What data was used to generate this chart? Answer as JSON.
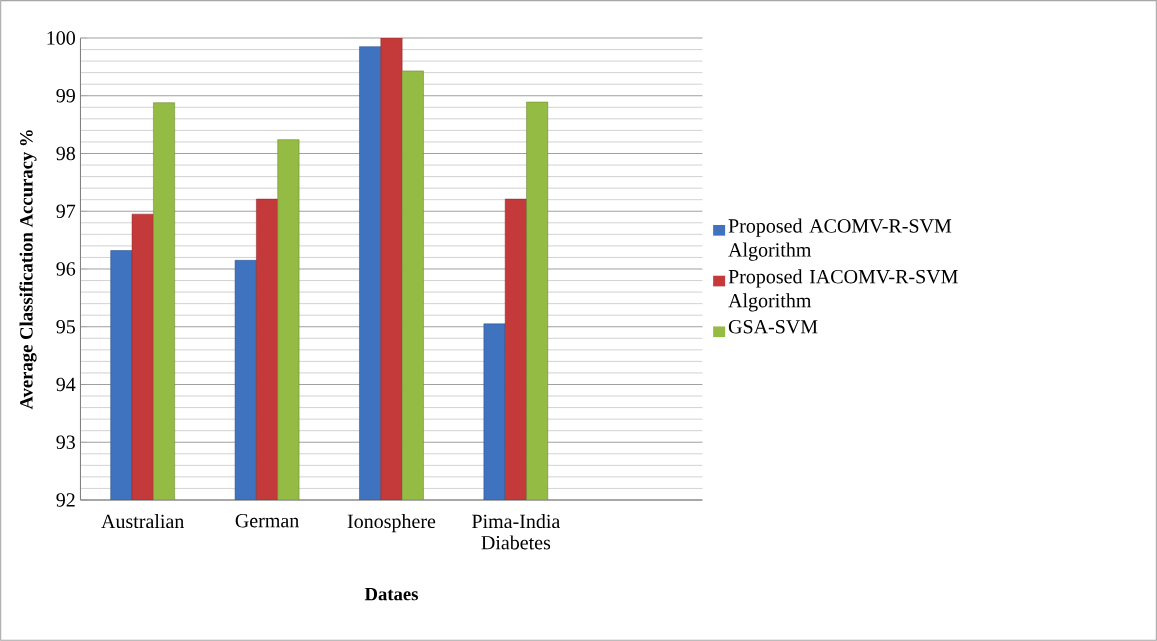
{
  "chart_data": {
    "type": "bar",
    "xlabel": "Dataes",
    "ylabel": "Average Classification Accuracy %",
    "categories": [
      "Australian",
      "German",
      "Ionosphere",
      "Pima-India Diabetes"
    ],
    "series": [
      {
        "name": "Proposed ACOMV-R-SVM Algorithm",
        "color": "#3f73bf",
        "values": [
          96.32,
          96.15,
          99.85,
          95.05
        ]
      },
      {
        "name": "Proposed IACOMV-R-SVM Algorithm",
        "color": "#c43a3a",
        "values": [
          96.95,
          97.21,
          100,
          97.21
        ]
      },
      {
        "name": "GSA-SVM",
        "color": "#94bb44",
        "values": [
          98.88,
          98.24,
          99.43,
          98.89
        ]
      }
    ],
    "ylim": [
      92,
      100
    ],
    "yticks": [
      92,
      93,
      94,
      95,
      96,
      97,
      98,
      99,
      100
    ],
    "grid": "y",
    "legend": "right"
  }
}
